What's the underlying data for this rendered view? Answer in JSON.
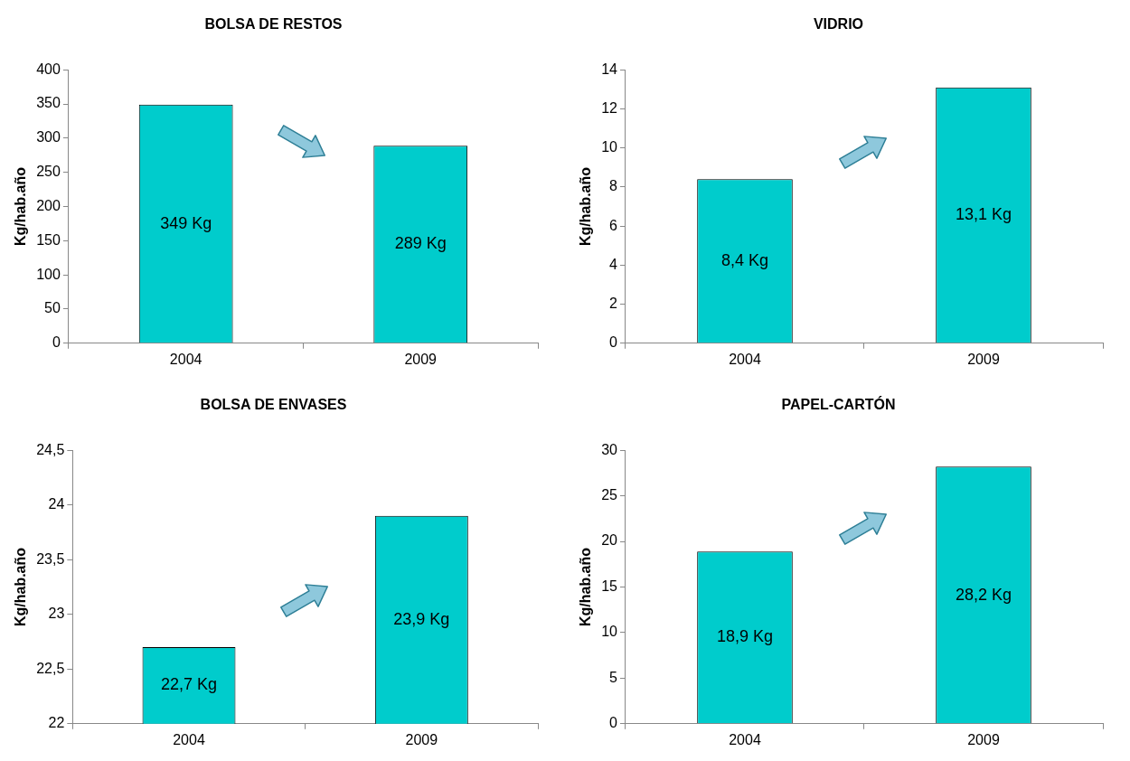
{
  "chart_data": [
    {
      "type": "bar",
      "title": "BOLSA DE RESTOS",
      "ylabel": "Kg/hab.año",
      "categories": [
        "2004",
        "2009"
      ],
      "values": [
        349,
        289
      ],
      "value_labels": [
        "349 Kg",
        "289 Kg"
      ],
      "color": "#00cccc",
      "ylim": [
        0,
        400
      ],
      "yticks": [
        0,
        50,
        100,
        150,
        200,
        250,
        300,
        350,
        400
      ]
    },
    {
      "type": "bar",
      "title": "VIDRIO",
      "ylabel": "Kg/hab.año",
      "categories": [
        "2004",
        "2009"
      ],
      "values": [
        8.4,
        13.1
      ],
      "value_labels": [
        "8,4 Kg",
        "13,1 Kg"
      ],
      "color": "#00cccc",
      "ylim": [
        0,
        14
      ],
      "yticks": [
        0,
        2,
        4,
        6,
        8,
        10,
        12,
        14
      ]
    },
    {
      "type": "bar",
      "title": "BOLSA DE ENVASES",
      "ylabel": "Kg/hab.año",
      "categories": [
        "2004",
        "2009"
      ],
      "values": [
        22.7,
        23.9
      ],
      "value_labels": [
        "22,7 Kg",
        "23,9 Kg"
      ],
      "color": "#00cccc",
      "ylim": [
        22,
        24.5
      ],
      "yticks": [
        22,
        {
          "value": 22.5,
          "label": "22,5"
        },
        23,
        {
          "value": 23.5,
          "label": "23,5"
        },
        24,
        {
          "value": 24.5,
          "label": "24,5"
        }
      ]
    },
    {
      "type": "bar",
      "title": "PAPEL-CARTÓN",
      "ylabel": "Kg/hab.año",
      "categories": [
        "2004",
        "2009"
      ],
      "values": [
        18.9,
        28.2
      ],
      "value_labels": [
        "18,9 Kg",
        "28,2 Kg"
      ],
      "color": "#00cccc",
      "ylim": [
        0,
        30
      ],
      "yticks": [
        0,
        5,
        10,
        15,
        20,
        25,
        30
      ]
    }
  ]
}
